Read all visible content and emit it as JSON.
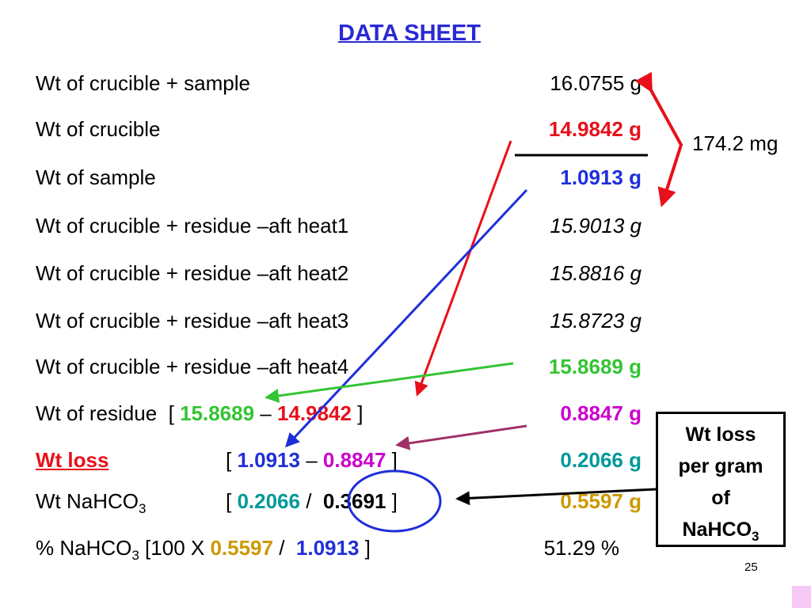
{
  "title": "DATA SHEET",
  "rows": [
    {
      "label": [
        {
          "text": "Wt of crucible + sample"
        }
      ],
      "value": {
        "text": "16.0755 g"
      }
    },
    {
      "label": [
        {
          "text": "Wt of crucible"
        }
      ],
      "value": {
        "text": "14.9842 g",
        "color": "#e8101a",
        "bold": true
      }
    },
    {
      "label": [
        {
          "text": "Wt of sample"
        }
      ],
      "value": {
        "text": "1.0913 g",
        "color": "#1f2fd8",
        "bold": true
      }
    },
    {
      "label": [
        {
          "text": "Wt of crucible + residue –aft heat1"
        }
      ],
      "value": {
        "text": "15.9013 g",
        "italic": true
      }
    },
    {
      "label": [
        {
          "text": "Wt of crucible + residue –aft heat2"
        }
      ],
      "value": {
        "text": "15.8816 g",
        "italic": true
      }
    },
    {
      "label": [
        {
          "text": "Wt of crucible + residue –aft heat3"
        }
      ],
      "value": {
        "text": "15.8723 g",
        "italic": true
      }
    },
    {
      "label": [
        {
          "text": "Wt of crucible + residue –aft heat4"
        }
      ],
      "value": {
        "text": "15.8689 g",
        "color": "#33c433",
        "bold": true
      }
    },
    {
      "label": [
        {
          "text": "Wt of residue  [ "
        },
        {
          "text": "15.8689",
          "color": "#33c433",
          "bold": true
        },
        {
          "text": " – "
        },
        {
          "text": "14.9842",
          "color": "#e8101a",
          "bold": true
        },
        {
          "text": " ]"
        }
      ],
      "value": {
        "text": "0.8847 g",
        "color": "#cc00cc",
        "bold": true
      }
    },
    {
      "label": [
        {
          "text": "Wt loss",
          "color": "#e8101a",
          "bold": true,
          "underline": true
        }
      ],
      "bracket": [
        {
          "text": "[ "
        },
        {
          "text": "1.0913",
          "color": "#1f2fd8",
          "bold": true
        },
        {
          "text": " – "
        },
        {
          "text": "0.8847",
          "color": "#cc00cc",
          "bold": true
        },
        {
          "text": " ]"
        }
      ],
      "value": {
        "text": "0.2066 g",
        "color": "#009999",
        "bold": true
      }
    },
    {
      "label": [
        {
          "text": "Wt NaHCO"
        },
        {
          "text": "3",
          "sub": true
        }
      ],
      "bracket": [
        {
          "text": "[ "
        },
        {
          "text": "0.2066",
          "color": "#009999",
          "bold": true
        },
        {
          "text": " /  "
        },
        {
          "text": "0.3691",
          "bold": true
        },
        {
          "text": " ]"
        }
      ],
      "value": {
        "text": "0.5597 g",
        "color": "#cc9900",
        "bold": true
      }
    },
    {
      "label": [
        {
          "text": "% NaHCO"
        },
        {
          "text": "3",
          "sub": true
        },
        {
          "text": " [100 X "
        },
        {
          "text": "0.5597",
          "color": "#cc9900",
          "bold": true
        },
        {
          "text": " /  "
        },
        {
          "text": "1.0913",
          "color": "#1f2fd8",
          "bold": true
        },
        {
          "text": " ]"
        }
      ],
      "value": {
        "text": "51.29 %"
      }
    }
  ],
  "difference_note": "174.2 mg",
  "box": [
    {
      "text": "Wt loss"
    },
    {
      "text": "per gram"
    },
    {
      "text": "of"
    },
    {
      "text": "NaHCO"
    },
    {
      "text": "3",
      "sub": true
    }
  ],
  "page_number": "25"
}
